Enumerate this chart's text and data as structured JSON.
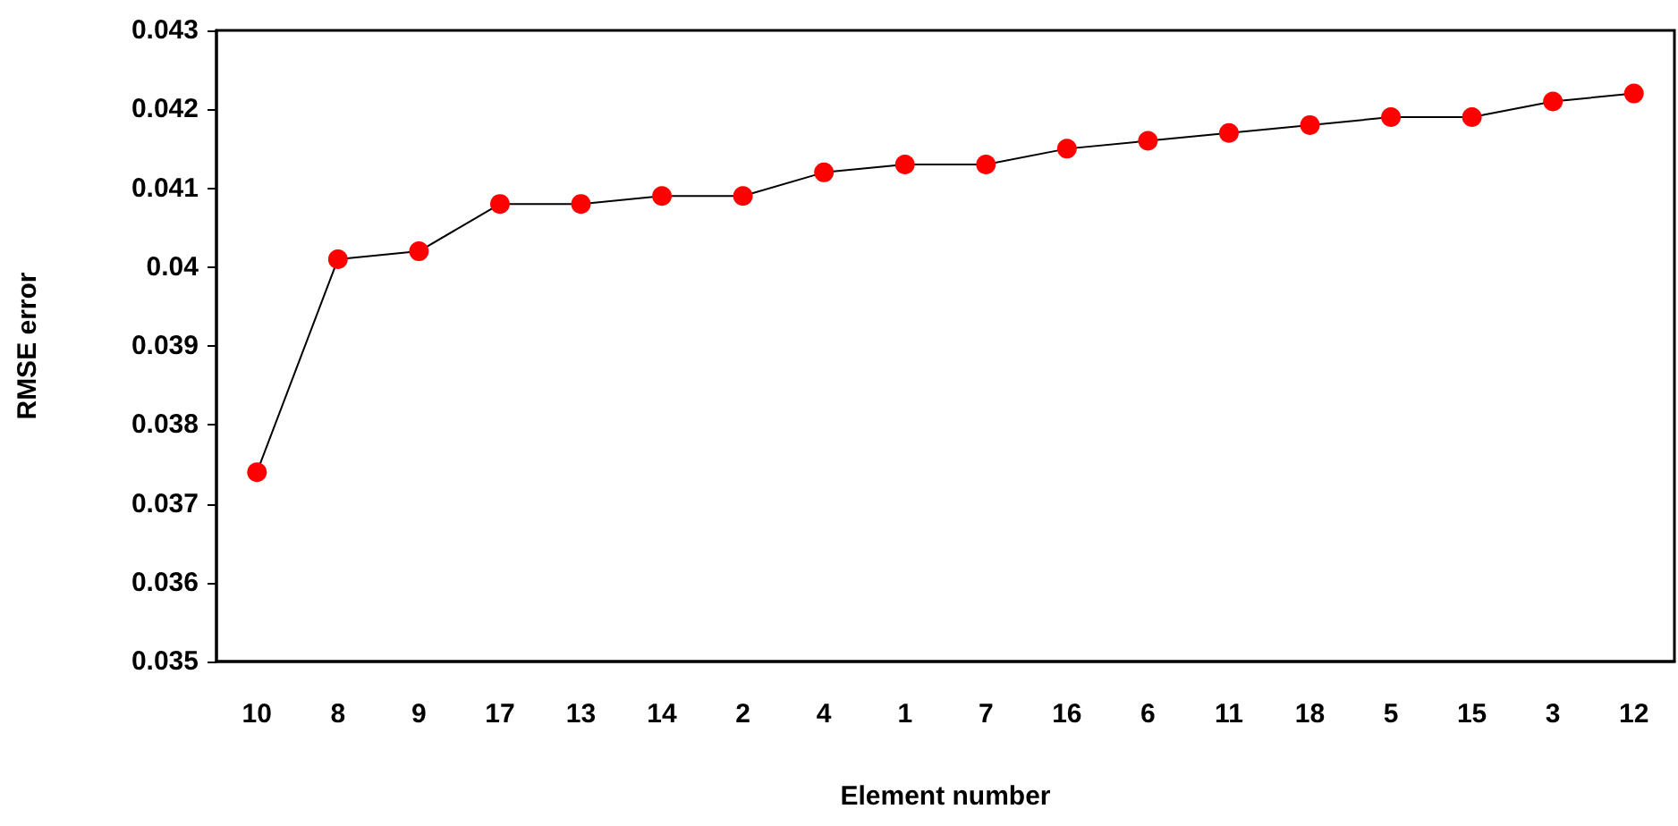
{
  "chart_data": {
    "type": "line",
    "xlabel": "Element number",
    "ylabel": "RMSE error",
    "categories": [
      "10",
      "8",
      "9",
      "17",
      "13",
      "14",
      "2",
      "4",
      "1",
      "7",
      "16",
      "6",
      "11",
      "18",
      "5",
      "15",
      "3",
      "12"
    ],
    "series": [
      {
        "color": "#ff0000",
        "values": [
          0.0374,
          0.0401,
          0.0402,
          0.0408,
          0.0408,
          0.0409,
          0.0409,
          0.0412,
          0.0413,
          0.0413,
          0.0415,
          0.0416,
          0.0417,
          0.0418,
          0.0419,
          0.0419,
          0.0421,
          0.0422
        ]
      }
    ],
    "ylim": [
      0.035,
      0.043
    ],
    "yticks": [
      0.035,
      0.036,
      0.037,
      0.038,
      0.039,
      0.04,
      0.041,
      0.042,
      0.043
    ],
    "grid": false,
    "marker": "circle",
    "line_style": "solid"
  }
}
